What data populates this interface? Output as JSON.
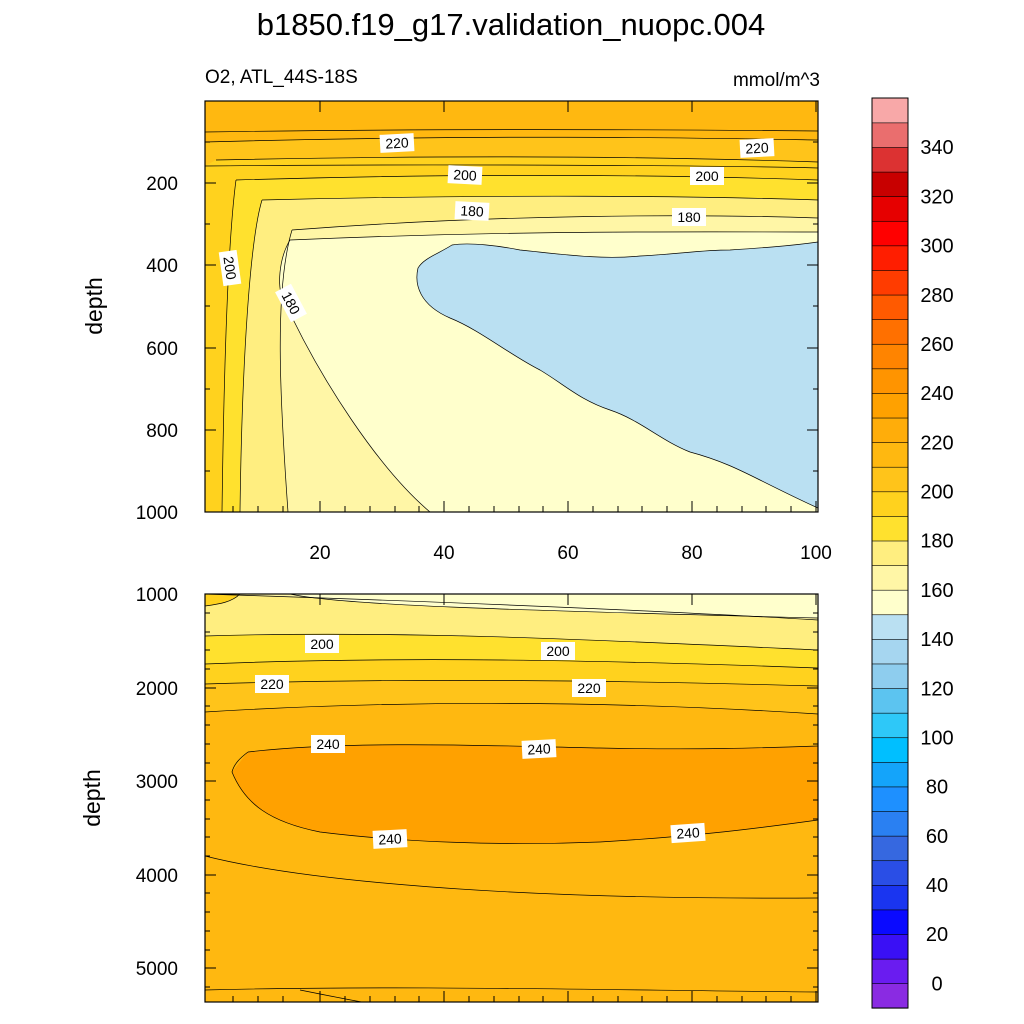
{
  "chart_data": {
    "type": "contour",
    "title": "b1850.f19_g17.validation_nuopc.004",
    "variable": "O2, ATL_44S-18S",
    "units": "mmol/m^3",
    "upper_panel": {
      "ylabel": "depth",
      "xlim": [
        1,
        101
      ],
      "ylim": [
        1000,
        0
      ],
      "xticks": [
        "20",
        "40",
        "60",
        "80",
        "100"
      ],
      "yticks": [
        "200",
        "400",
        "600",
        "800",
        "1000"
      ],
      "contour_labels": [
        "220",
        "220",
        "200",
        "200",
        "180",
        "180",
        "200",
        "180"
      ]
    },
    "lower_panel": {
      "ylabel": "depth",
      "ylim": [
        5350,
        1000
      ],
      "yticks": [
        "1000",
        "2000",
        "3000",
        "4000",
        "5000"
      ],
      "contour_labels": [
        "200",
        "200",
        "220",
        "220",
        "240",
        "240",
        "240",
        "240"
      ]
    },
    "colorbar": {
      "labels": [
        "0",
        "20",
        "40",
        "60",
        "80",
        "100",
        "120",
        "140",
        "160",
        "180",
        "200",
        "220",
        "240",
        "260",
        "280",
        "300",
        "320",
        "340"
      ],
      "colors": [
        "#8a2be2",
        "#6a1cf0",
        "#3a10f5",
        "#0a0aff",
        "#1a35f0",
        "#2a4ee6",
        "#3668e0",
        "#2a80f2",
        "#1e90ff",
        "#14a4fa",
        "#00bfff",
        "#2ec8f8",
        "#5cc4f0",
        "#8ecdee",
        "#a6d6f0",
        "#bae0f2",
        "#ffffcc",
        "#fff6a6",
        "#ffee80",
        "#ffe12e",
        "#ffd21e",
        "#ffc41a",
        "#ffb810",
        "#ffad0a",
        "#ffa100",
        "#ff9400",
        "#ff8400",
        "#ff7000",
        "#ff5a00",
        "#ff3c00",
        "#ff1e00",
        "#ff0000",
        "#e60000",
        "#c80000",
        "#dc3232",
        "#ea6e6e",
        "#f8a8a8"
      ]
    },
    "colors": {
      "blue_region": "#bae0f2",
      "level_160_180": "#ffffcc",
      "level_180_190": "#fff6a6",
      "level_190_200": "#ffee80",
      "level_200_210": "#ffe12e",
      "level_210_220": "#ffd21e",
      "level_220_230": "#ffc41a",
      "level_230_240": "#ffb810",
      "level_240_250": "#ffa100"
    }
  }
}
